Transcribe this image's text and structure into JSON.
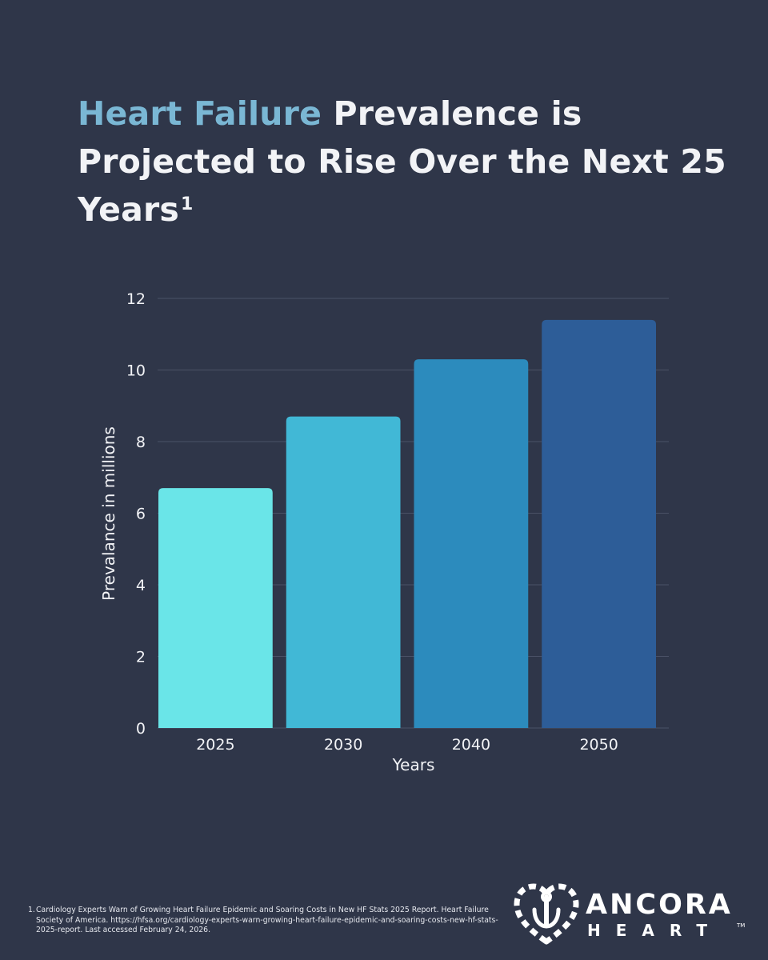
{
  "title": {
    "highlight": "Heart Failure",
    "rest": " Prevalence is Projected to Rise Over the Next 25 Years",
    "superscript": "1"
  },
  "chart_data": {
    "type": "bar",
    "categories": [
      "2025",
      "2030",
      "2040",
      "2050"
    ],
    "values": [
      6.7,
      8.7,
      10.3,
      11.4
    ],
    "colors": [
      "#6ae5e8",
      "#41b8d6",
      "#2c8bbd",
      "#2d5d98"
    ],
    "xlabel": "Years",
    "ylabel": "Prevalance in millions",
    "ylim": [
      0,
      12
    ],
    "yticks": [
      "0",
      "2",
      "4",
      "6",
      "8",
      "10",
      "12"
    ],
    "grid": true,
    "grid_color": "#4a5166"
  },
  "footnote": {
    "number": "1.",
    "text": "Cardiology Experts Warn of Growing Heart Failure Epidemic and Soaring Costs in New HF Stats 2025 Report. Heart Failure Society of America. https://hfsa.org/cardiology-experts-warn-growing-heart-failure-epidemic-and-soaring-costs-new-hf-stats-2025-report. Last accessed February 24, 2026."
  },
  "logo": {
    "word": "ANCORA",
    "sub": "HEART",
    "tm": "TM",
    "icon": "heart-anchor-icon"
  },
  "colors": {
    "background": "#2f3649",
    "accent": "#7ab7d4",
    "text": "#f2f3f6"
  }
}
